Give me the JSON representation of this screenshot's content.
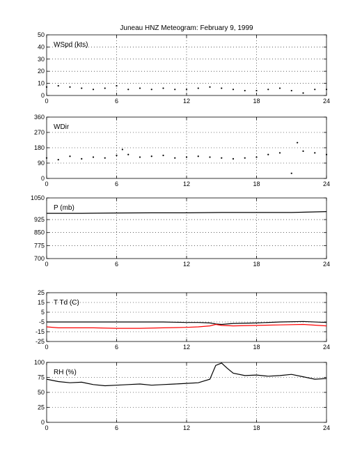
{
  "title": "Juneau HNZ Meteogram:  February  9, 1999",
  "chart_data": [
    {
      "type": "scatter",
      "label": "WSpd (kts)",
      "xlim": [
        0,
        24
      ],
      "ylim": [
        0,
        50
      ],
      "xticks": [
        "0",
        "6",
        "12",
        "18",
        "24"
      ],
      "yticks": [
        "0",
        "10",
        "20",
        "30",
        "40",
        "50"
      ],
      "grid": true,
      "series": [
        {
          "color": "#000000",
          "x": [
            0,
            1,
            2,
            3,
            4,
            5,
            6,
            7,
            8,
            9,
            10,
            11,
            12,
            13,
            14,
            15,
            16,
            17,
            18,
            19,
            20,
            21,
            22,
            23,
            24
          ],
          "y": [
            7,
            8,
            7,
            6,
            5,
            6,
            8,
            5,
            6,
            5,
            6,
            5,
            5,
            6,
            7,
            6,
            5,
            4,
            4,
            5,
            6,
            4,
            2,
            5,
            5
          ]
        }
      ]
    },
    {
      "type": "scatter",
      "label": "WDir",
      "xlim": [
        0,
        24
      ],
      "ylim": [
        0,
        360
      ],
      "xticks": [
        "0",
        "6",
        "12",
        "18",
        "24"
      ],
      "yticks": [
        "0",
        "90",
        "180",
        "270",
        "360"
      ],
      "grid": true,
      "series": [
        {
          "color": "#000000",
          "x": [
            0,
            1,
            2,
            3,
            4,
            5,
            6,
            6.5,
            7,
            8,
            9,
            10,
            11,
            12,
            13,
            14,
            15,
            16,
            17,
            18,
            19,
            20,
            21,
            21.5,
            22,
            23,
            24
          ],
          "y": [
            120,
            110,
            130,
            115,
            125,
            120,
            135,
            170,
            140,
            125,
            130,
            135,
            120,
            125,
            130,
            125,
            120,
            115,
            120,
            125,
            140,
            150,
            30,
            210,
            160,
            150,
            140
          ]
        }
      ]
    },
    {
      "type": "line",
      "label": "P (mb)",
      "xlim": [
        0,
        24
      ],
      "ylim": [
        700,
        1050
      ],
      "xticks": [
        "0",
        "6",
        "12",
        "18",
        "24"
      ],
      "yticks": [
        "700",
        "775",
        "850",
        "925",
        "1050"
      ],
      "grid": true,
      "series": [
        {
          "color": "#000000",
          "x": [
            0,
            3,
            6,
            9,
            12,
            15,
            18,
            21,
            24
          ],
          "y": [
            961,
            961,
            963,
            964,
            964,
            966,
            966,
            966,
            971
          ]
        }
      ]
    },
    {
      "type": "line",
      "label": "T Td (C)",
      "xlim": [
        0,
        24
      ],
      "ylim": [
        -25,
        25
      ],
      "xticks": [
        "0",
        "6",
        "12",
        "18",
        "24"
      ],
      "yticks": [
        "-25",
        "-15",
        "-5",
        "5",
        "15",
        "25"
      ],
      "grid": true,
      "series": [
        {
          "color": "#000000",
          "x": [
            0,
            2,
            4,
            6,
            8,
            10,
            12,
            13,
            14,
            14.5,
            15,
            16,
            18,
            20,
            22,
            24
          ],
          "y": [
            -5,
            -5,
            -5,
            -5,
            -5,
            -5,
            -5.5,
            -5.5,
            -6,
            -7,
            -7.5,
            -6.5,
            -6,
            -5,
            -4.5,
            -5.5
          ]
        },
        {
          "color": "#ff0000",
          "x": [
            0,
            1,
            2,
            4,
            6,
            8,
            10,
            12,
            13,
            14,
            14.5,
            15,
            16,
            18,
            20,
            22,
            24
          ],
          "y": [
            -10,
            -11,
            -11,
            -11,
            -11.5,
            -11.5,
            -11,
            -10.5,
            -10,
            -9,
            -7.5,
            -8.5,
            -9,
            -8.5,
            -8,
            -7.5,
            -9
          ]
        }
      ]
    },
    {
      "type": "line",
      "label": "RH (%)",
      "xlim": [
        0,
        24
      ],
      "ylim": [
        0,
        100
      ],
      "xticks": [
        "0",
        "6",
        "12",
        "18",
        "24"
      ],
      "yticks": [
        "0",
        "25",
        "50",
        "75",
        "100"
      ],
      "grid": true,
      "series": [
        {
          "color": "#000000",
          "x": [
            0,
            1,
            2,
            3,
            4,
            5,
            6,
            7,
            8,
            9,
            10,
            11,
            12,
            13,
            14,
            14.5,
            15,
            15.5,
            16,
            17,
            18,
            19,
            20,
            21,
            22,
            23,
            24
          ],
          "y": [
            72,
            68,
            66,
            67,
            63,
            61,
            62,
            63,
            64,
            62,
            63,
            64,
            65,
            66,
            72,
            95,
            99,
            90,
            82,
            78,
            79,
            77,
            78,
            80,
            76,
            72,
            73
          ]
        }
      ]
    }
  ]
}
